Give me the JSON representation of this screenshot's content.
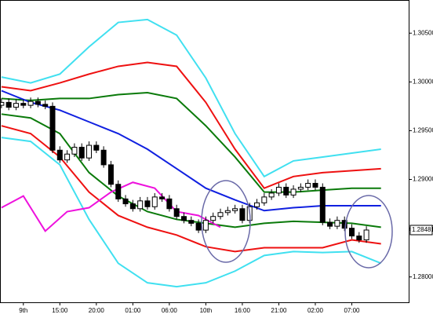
{
  "chart_data": {
    "type": "candlestick",
    "xlim": [
      -0.2,
      55.9
    ],
    "ylim": [
      1.2774,
      1.3084
    ],
    "xticks": [
      {
        "value": 3,
        "label": "9th"
      },
      {
        "value": 8,
        "label": "15:00"
      },
      {
        "value": 13,
        "label": "20:00"
      },
      {
        "value": 18,
        "label": "01:00"
      },
      {
        "value": 23,
        "label": "06:00"
      },
      {
        "value": 28,
        "label": "10th"
      },
      {
        "value": 33,
        "label": "16:00"
      },
      {
        "value": 38,
        "label": "21:00"
      },
      {
        "value": 43,
        "label": "02:00"
      },
      {
        "value": 48,
        "label": "07:00"
      }
    ],
    "yticks": [
      {
        "value": 1.28,
        "label": "1.28000"
      },
      {
        "value": 1.285,
        "label": "1.28500"
      },
      {
        "value": 1.29,
        "label": "1.29000"
      },
      {
        "value": 1.295,
        "label": "1.29500"
      },
      {
        "value": 1.3,
        "label": "1.30000"
      },
      {
        "value": 1.305,
        "label": "1.30500"
      }
    ],
    "last_price": {
      "value": 1.28481,
      "label": "1.28481"
    },
    "up_color": "#ffffff",
    "down_color": "#000000",
    "x": [
      0,
      1,
      2,
      3,
      4,
      5,
      6,
      7,
      8,
      9,
      10,
      11,
      12,
      13,
      14,
      15,
      16,
      17,
      18,
      19,
      20,
      21,
      22,
      23,
      24,
      25,
      26,
      27,
      28,
      29,
      30,
      31,
      32,
      33,
      34,
      35,
      36,
      37,
      38,
      39,
      40,
      41,
      42,
      43,
      44,
      45,
      46,
      47,
      48,
      49,
      50
    ],
    "open": [
      1.2976,
      1.2979,
      1.2974,
      1.2978,
      1.2976,
      1.298,
      1.2977,
      1.2975,
      1.293,
      1.292,
      1.2926,
      1.2933,
      1.2922,
      1.2935,
      1.293,
      1.2915,
      1.2895,
      1.288,
      1.2875,
      1.287,
      1.2878,
      1.2872,
      1.2882,
      1.288,
      1.287,
      1.2862,
      1.2858,
      1.2855,
      1.2848,
      1.2858,
      1.2862,
      1.2866,
      1.2868,
      1.287,
      1.2858,
      1.2872,
      1.2876,
      1.2882,
      1.2886,
      1.2892,
      1.2884,
      1.289,
      1.2892,
      1.2896,
      1.2892,
      1.2856,
      1.2852,
      1.2858,
      1.285,
      1.2842,
      1.2838
    ],
    "high": [
      1.2983,
      1.2983,
      1.2982,
      1.2982,
      1.2984,
      1.2984,
      1.2981,
      1.2979,
      1.2934,
      1.293,
      1.2937,
      1.2937,
      1.2939,
      1.2939,
      1.2934,
      1.2919,
      1.2899,
      1.2884,
      1.2879,
      1.2882,
      1.2882,
      1.2886,
      1.2886,
      1.2884,
      1.2874,
      1.2866,
      1.2862,
      1.2859,
      1.2862,
      1.2866,
      1.287,
      1.2872,
      1.2874,
      1.2874,
      1.2876,
      1.288,
      1.2886,
      1.289,
      1.2896,
      1.2896,
      1.2894,
      1.2896,
      1.29,
      1.29,
      1.2896,
      1.286,
      1.2862,
      1.2862,
      1.2854,
      1.2846,
      1.2852
    ],
    "low": [
      1.2973,
      1.2971,
      1.2971,
      1.2973,
      1.2973,
      1.2974,
      1.2972,
      1.2927,
      1.2917,
      1.2917,
      1.2923,
      1.2919,
      1.2919,
      1.2927,
      1.2912,
      1.2892,
      1.2877,
      1.2872,
      1.2867,
      1.2867,
      1.2869,
      1.2869,
      1.2877,
      1.2867,
      1.2859,
      1.2855,
      1.2852,
      1.2845,
      1.2845,
      1.2855,
      1.2859,
      1.2863,
      1.2865,
      1.2855,
      1.2855,
      1.2869,
      1.2873,
      1.2879,
      1.2883,
      1.2881,
      1.2881,
      1.2887,
      1.2889,
      1.2889,
      1.2853,
      1.2849,
      1.2849,
      1.2847,
      1.2839,
      1.2835,
      1.2835
    ],
    "close": [
      1.2979,
      1.2974,
      1.2978,
      1.2976,
      1.298,
      1.2977,
      1.2975,
      1.293,
      1.292,
      1.2926,
      1.2933,
      1.2922,
      1.2935,
      1.293,
      1.2915,
      1.2895,
      1.288,
      1.2875,
      1.287,
      1.2878,
      1.2872,
      1.2882,
      1.288,
      1.287,
      1.2862,
      1.2858,
      1.2855,
      1.2848,
      1.2858,
      1.2862,
      1.2866,
      1.2868,
      1.287,
      1.2858,
      1.2872,
      1.2876,
      1.2882,
      1.2886,
      1.2892,
      1.2884,
      1.289,
      1.2892,
      1.2896,
      1.2892,
      1.2856,
      1.2852,
      1.2858,
      1.285,
      1.2842,
      1.2838,
      1.28481
    ],
    "overlays": [
      {
        "color": "#40e0f0",
        "x": [
          0,
          4,
          8,
          12,
          16,
          20,
          24,
          28,
          32,
          36,
          40,
          44,
          48,
          52
        ],
        "values": [
          1.3005,
          1.2999,
          1.3008,
          1.3036,
          1.3061,
          1.3064,
          1.3048,
          1.3004,
          1.2947,
          1.2903,
          1.2919,
          1.2923,
          1.2927,
          1.2931
        ]
      },
      {
        "color": "#ee1111",
        "x": [
          0,
          4,
          8,
          12,
          16,
          20,
          24,
          28,
          32,
          36,
          40,
          44,
          48,
          52
        ],
        "values": [
          1.2995,
          1.2991,
          1.2999,
          1.3008,
          1.3016,
          1.302,
          1.3016,
          1.2979,
          1.2931,
          1.2891,
          1.2903,
          1.2907,
          1.2909,
          1.2911
        ]
      },
      {
        "color": "#0a7a0a",
        "x": [
          0,
          4,
          8,
          12,
          16,
          20,
          24,
          28,
          32,
          36,
          40,
          44,
          48,
          52
        ],
        "values": [
          1.2983,
          1.2981,
          1.2983,
          1.2983,
          1.2987,
          1.2989,
          1.2983,
          1.2955,
          1.2923,
          1.2887,
          1.2887,
          1.2889,
          1.2891,
          1.2891
        ]
      },
      {
        "color": "#1020e0",
        "x": [
          0,
          4,
          8,
          12,
          16,
          20,
          24,
          28,
          32,
          36,
          40,
          44,
          48,
          52
        ],
        "values": [
          1.2991,
          1.2979,
          1.2971,
          1.2959,
          1.2947,
          1.2931,
          1.2911,
          1.2891,
          1.2879,
          1.2868,
          1.2871,
          1.2873,
          1.2873,
          1.2873
        ]
      },
      {
        "color": "#0a7a0a",
        "x": [
          0,
          4,
          8,
          12,
          16,
          20,
          24,
          28,
          32,
          36,
          40,
          44,
          48,
          52
        ],
        "values": [
          1.2967,
          1.2963,
          1.2947,
          1.2907,
          1.2883,
          1.2867,
          1.2859,
          1.2855,
          1.2851,
          1.2855,
          1.2857,
          1.2856,
          1.2855,
          1.2851
        ]
      },
      {
        "color": "#ee1111",
        "x": [
          0,
          4,
          8,
          12,
          16,
          20,
          24,
          28,
          32,
          36,
          40,
          44,
          48,
          52
        ],
        "values": [
          1.2955,
          1.2947,
          1.2923,
          1.2887,
          1.2863,
          1.2851,
          1.2843,
          1.2831,
          1.2826,
          1.283,
          1.283,
          1.283,
          1.2838,
          1.2834
        ]
      },
      {
        "color": "#40e0f0",
        "x": [
          0,
          4,
          8,
          12,
          16,
          20,
          24,
          28,
          32,
          36,
          40,
          44,
          48,
          52
        ],
        "values": [
          1.2943,
          1.2939,
          1.2915,
          1.2859,
          1.2814,
          1.2794,
          1.279,
          1.2794,
          1.2806,
          1.2822,
          1.2826,
          1.2825,
          1.2826,
          1.2814
        ]
      },
      {
        "color": "#ee11dd",
        "x": [
          0,
          3,
          6,
          9,
          12,
          15,
          18,
          21,
          24,
          27,
          30
        ],
        "values": [
          1.2871,
          1.2883,
          1.2847,
          1.2867,
          1.2871,
          1.2887,
          1.2897,
          1.2891,
          1.2867,
          1.2863,
          1.2851
        ]
      }
    ]
  }
}
